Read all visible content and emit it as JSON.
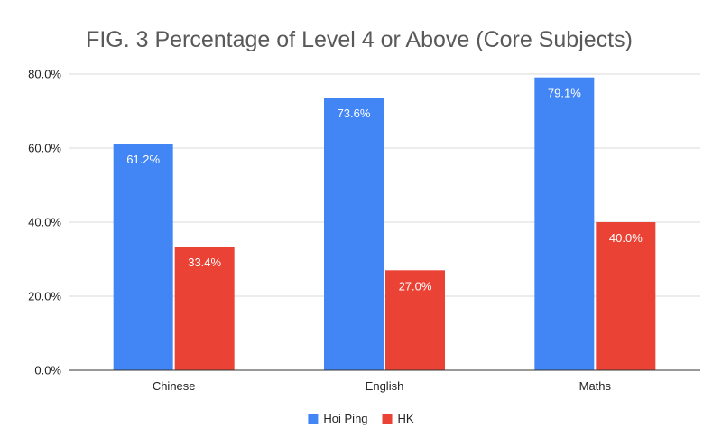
{
  "chart_data": {
    "type": "bar",
    "title": "FIG. 3 Percentage of Level 4 or Above (Core Subjects)",
    "categories": [
      "Chinese",
      "English",
      "Maths"
    ],
    "series": [
      {
        "name": "Hoi Ping",
        "color": "#4285f4",
        "values": [
          61.2,
          73.6,
          79.1
        ],
        "labels": [
          "61.2%",
          "73.6%",
          "79.1%"
        ]
      },
      {
        "name": "HK",
        "color": "#ea4335",
        "values": [
          33.4,
          27.0,
          40.0
        ],
        "labels": [
          "33.4%",
          "27.0%",
          "40.0%"
        ]
      }
    ],
    "ylim": [
      0,
      80
    ],
    "yticks": [
      0,
      20,
      40,
      60,
      80
    ],
    "ytick_labels": [
      "0.0%",
      "20.0%",
      "40.0%",
      "60.0%",
      "80.0%"
    ],
    "grid": true,
    "legend_position": "bottom"
  }
}
